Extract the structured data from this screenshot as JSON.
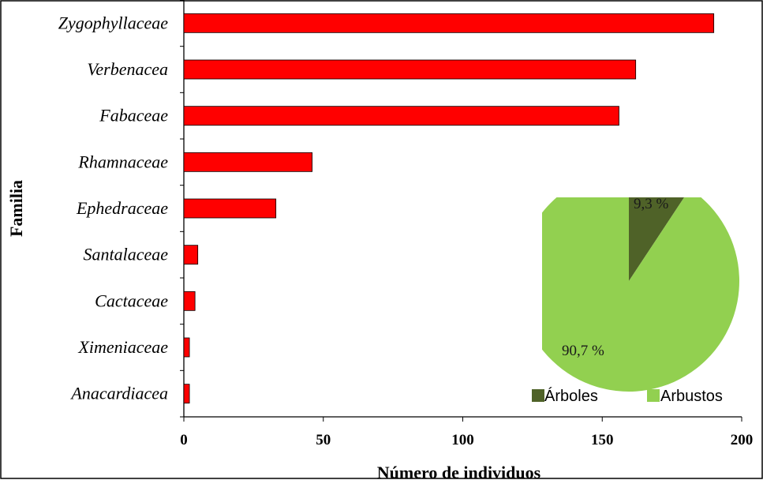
{
  "chart_data": [
    {
      "type": "bar",
      "orientation": "horizontal",
      "categories": [
        "Zygophyllaceae",
        "Verbenacea",
        "Fabaceae",
        "Rhamnaceae",
        "Ephedraceae",
        "Santalaceae",
        "Cactaceae",
        "Ximeniaceae",
        "Anacardiacea"
      ],
      "values": [
        190,
        162,
        156,
        46,
        33,
        5,
        4,
        2,
        2
      ],
      "xlabel": "Número de individuos",
      "ylabel": "Familia",
      "xlim": [
        0,
        200
      ],
      "xticks": [
        0,
        50,
        100,
        150,
        200
      ],
      "bar_color": "#ff0000",
      "grid": false
    },
    {
      "type": "pie",
      "categories": [
        "Árboles",
        "Arbustos"
      ],
      "values": [
        9.3,
        90.7
      ],
      "labels": [
        "9,3 %",
        "90,7 %"
      ],
      "colors": [
        "#4f6228",
        "#92d050"
      ],
      "legend": [
        "Árboles",
        "Arbustos"
      ],
      "legend_position": "bottom"
    }
  ]
}
